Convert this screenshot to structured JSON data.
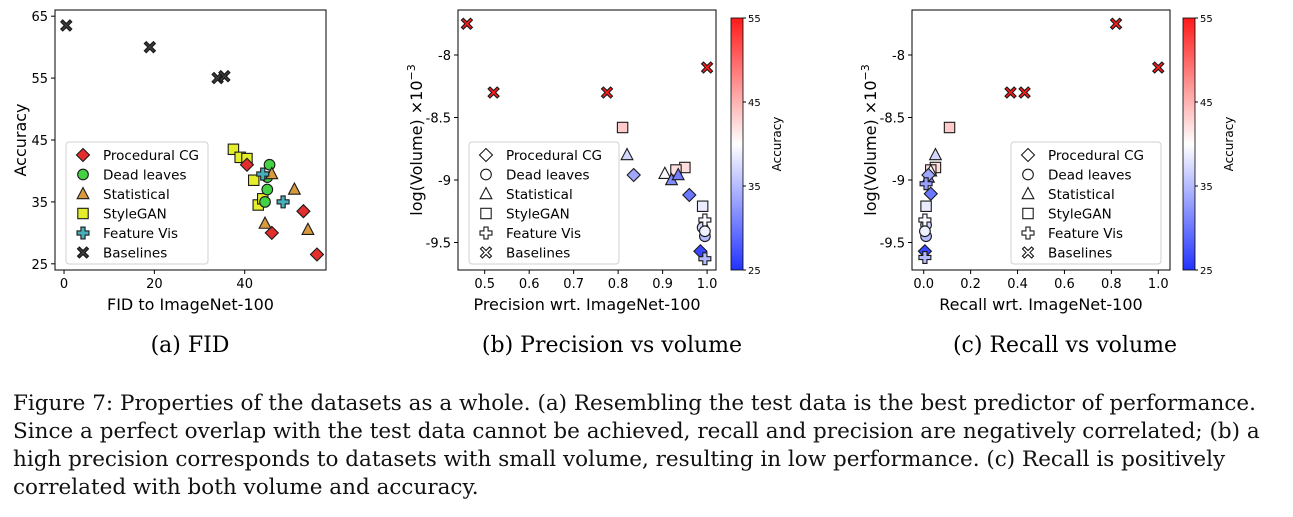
{
  "figure": {
    "caption_lines": [
      "Figure 7: Properties of the datasets as a whole. (a) Resembling the test data is the best predictor of performance.",
      "Since a perfect overlap with the test data cannot be achieved, recall and precision are negatively correlated; (b) a",
      "high precision corresponds to datasets with small volume, resulting in low performance. (c) Recall is positively",
      "correlated with both volume and accuracy."
    ]
  },
  "categories": [
    "Procedural CG",
    "Dead leaves",
    "Statistical",
    "StyleGAN",
    "Feature Vis",
    "Baselines"
  ],
  "category_colors": {
    "Procedural CG": "#e32e2e",
    "Dead leaves": "#44d144",
    "Statistical": "#d99a3e",
    "StyleGAN": "#e4ee2a",
    "Feature Vis": "#48b0bd",
    "Baselines": "#404040"
  },
  "category_markers": {
    "Procedural CG": "diamond",
    "Dead leaves": "circle",
    "Statistical": "triangle",
    "StyleGAN": "square",
    "Feature Vis": "plus",
    "Baselines": "x"
  },
  "colormap": {
    "name": "bwr",
    "low": "#2233ff",
    "mid": "#ffffff",
    "high": "#ff1a1a"
  },
  "chart_data": [
    {
      "type": "scatter",
      "subcaption": "(a) FID",
      "title": "",
      "xlabel": "FID to ImageNet-100",
      "ylabel": "Accuracy",
      "xlim": [
        -2,
        58
      ],
      "ylim": [
        24,
        66
      ],
      "xticks": [
        0,
        20,
        40
      ],
      "yticks": [
        25,
        35,
        45,
        55,
        65
      ],
      "grid": false,
      "legend": "lower-left",
      "color_by": "category",
      "points": [
        {
          "cat": "Baselines",
          "x": 0.5,
          "y": 63.5
        },
        {
          "cat": "Baselines",
          "x": 19,
          "y": 60
        },
        {
          "cat": "Baselines",
          "x": 34,
          "y": 55
        },
        {
          "cat": "Baselines",
          "x": 35.5,
          "y": 55.3
        },
        {
          "cat": "StyleGAN",
          "x": 37.5,
          "y": 43.5
        },
        {
          "cat": "StyleGAN",
          "x": 39,
          "y": 42.2
        },
        {
          "cat": "StyleGAN",
          "x": 40.5,
          "y": 42
        },
        {
          "cat": "StyleGAN",
          "x": 42,
          "y": 38.5
        },
        {
          "cat": "StyleGAN",
          "x": 43,
          "y": 34.5
        },
        {
          "cat": "StyleGAN",
          "x": 44,
          "y": 35.5
        },
        {
          "cat": "Procedural CG",
          "x": 40.5,
          "y": 41
        },
        {
          "cat": "Procedural CG",
          "x": 53,
          "y": 33.5
        },
        {
          "cat": "Procedural CG",
          "x": 46,
          "y": 30
        },
        {
          "cat": "Procedural CG",
          "x": 56,
          "y": 26.5
        },
        {
          "cat": "Dead leaves",
          "x": 45.5,
          "y": 41
        },
        {
          "cat": "Dead leaves",
          "x": 45,
          "y": 39
        },
        {
          "cat": "Dead leaves",
          "x": 45,
          "y": 37
        },
        {
          "cat": "Dead leaves",
          "x": 44.5,
          "y": 35
        },
        {
          "cat": "Statistical",
          "x": 46,
          "y": 39.5
        },
        {
          "cat": "Statistical",
          "x": 51,
          "y": 37
        },
        {
          "cat": "Statistical",
          "x": 54,
          "y": 30.5
        },
        {
          "cat": "Statistical",
          "x": 44.5,
          "y": 31.5
        },
        {
          "cat": "Feature Vis",
          "x": 44,
          "y": 39.5
        },
        {
          "cat": "Feature Vis",
          "x": 48.5,
          "y": 35
        }
      ]
    },
    {
      "type": "scatter",
      "subcaption": "(b) Precision vs volume",
      "title": "",
      "xlabel": "Precision wrt. ImageNet-100",
      "ylabel": "log(Volume) ×10",
      "ylabel_exponent": "−3",
      "xlim": [
        0.44,
        1.02
      ],
      "ylim": [
        -9.72,
        -7.64
      ],
      "xticks": [
        0.5,
        0.6,
        0.7,
        0.8,
        0.9,
        1.0
      ],
      "xtick_labels": [
        "0.5",
        "0.6",
        "0.7",
        "0.8",
        "0.9",
        "1.0"
      ],
      "yticks": [
        -8,
        -8.5,
        -9,
        -9.5
      ],
      "ytick_labels": [
        "-8",
        "-8.5",
        "-9",
        "-9.5"
      ],
      "grid": false,
      "legend": "lower-left",
      "color_by": "accuracy",
      "colorbar": {
        "label": "Accuracy",
        "min": 25,
        "max": 55,
        "ticks": [
          25,
          35,
          45,
          55
        ]
      },
      "points": [
        {
          "cat": "Baselines",
          "x": 0.46,
          "y": -7.75,
          "acc": 63.5
        },
        {
          "cat": "Baselines",
          "x": 0.52,
          "y": -8.3,
          "acc": 55.3
        },
        {
          "cat": "Baselines",
          "x": 0.775,
          "y": -8.3,
          "acc": 55
        },
        {
          "cat": "Baselines",
          "x": 1.0,
          "y": -8.1,
          "acc": 60
        },
        {
          "cat": "StyleGAN",
          "x": 0.81,
          "y": -8.58,
          "acc": 43.5
        },
        {
          "cat": "StyleGAN",
          "x": 0.95,
          "y": -8.9,
          "acc": 42.2
        },
        {
          "cat": "StyleGAN",
          "x": 0.93,
          "y": -8.92,
          "acc": 42
        },
        {
          "cat": "StyleGAN",
          "x": 0.99,
          "y": -9.21,
          "acc": 38.5
        },
        {
          "cat": "Statistical",
          "x": 0.82,
          "y": -8.8,
          "acc": 37
        },
        {
          "cat": "Statistical",
          "x": 0.905,
          "y": -8.95,
          "acc": 39.5
        },
        {
          "cat": "Statistical",
          "x": 0.92,
          "y": -9.0,
          "acc": 31.5
        },
        {
          "cat": "Statistical",
          "x": 0.935,
          "y": -8.96,
          "acc": 30.5
        },
        {
          "cat": "Procedural CG",
          "x": 0.835,
          "y": -8.96,
          "acc": 33.5
        },
        {
          "cat": "Procedural CG",
          "x": 0.96,
          "y": -9.12,
          "acc": 30
        },
        {
          "cat": "Procedural CG",
          "x": 0.985,
          "y": -9.57,
          "acc": 26.5
        },
        {
          "cat": "Dead leaves",
          "x": 0.99,
          "y": -9.38,
          "acc": 37
        },
        {
          "cat": "Dead leaves",
          "x": 0.995,
          "y": -9.45,
          "acc": 35
        },
        {
          "cat": "Dead leaves",
          "x": 0.995,
          "y": -9.41,
          "acc": 39
        },
        {
          "cat": "Feature Vis",
          "x": 0.995,
          "y": -9.32,
          "acc": 39.5
        },
        {
          "cat": "Feature Vis",
          "x": 0.995,
          "y": -9.63,
          "acc": 35
        }
      ]
    },
    {
      "type": "scatter",
      "subcaption": "(c) Recall vs volume",
      "title": "",
      "xlabel": "Recall wrt. ImageNet-100",
      "ylabel": "log(Volume) ×10",
      "ylabel_exponent": "−3",
      "xlim": [
        -0.05,
        1.05
      ],
      "ylim": [
        -9.72,
        -7.64
      ],
      "xticks": [
        0.0,
        0.2,
        0.4,
        0.6,
        0.8,
        1.0
      ],
      "xtick_labels": [
        "0.0",
        "0.2",
        "0.4",
        "0.6",
        "0.8",
        "1.0"
      ],
      "yticks": [
        -8,
        -8.5,
        -9,
        -9.5
      ],
      "ytick_labels": [
        "-8",
        "-8.5",
        "-9",
        "-9.5"
      ],
      "grid": false,
      "legend": "lower-right",
      "color_by": "accuracy",
      "colorbar": {
        "label": "Accuracy",
        "min": 25,
        "max": 55,
        "ticks": [
          25,
          35,
          45,
          55
        ]
      },
      "points": [
        {
          "cat": "Baselines",
          "x": 0.82,
          "y": -7.75,
          "acc": 63.5
        },
        {
          "cat": "Baselines",
          "x": 1.0,
          "y": -8.1,
          "acc": 60
        },
        {
          "cat": "Baselines",
          "x": 0.37,
          "y": -8.3,
          "acc": 55.3
        },
        {
          "cat": "Baselines",
          "x": 0.43,
          "y": -8.3,
          "acc": 55
        },
        {
          "cat": "StyleGAN",
          "x": 0.11,
          "y": -8.58,
          "acc": 43.5
        },
        {
          "cat": "StyleGAN",
          "x": 0.05,
          "y": -8.9,
          "acc": 42.2
        },
        {
          "cat": "StyleGAN",
          "x": 0.03,
          "y": -8.92,
          "acc": 42
        },
        {
          "cat": "StyleGAN",
          "x": 0.01,
          "y": -9.21,
          "acc": 38.5
        },
        {
          "cat": "Statistical",
          "x": 0.05,
          "y": -8.8,
          "acc": 37
        },
        {
          "cat": "Statistical",
          "x": 0.03,
          "y": -8.93,
          "acc": 39.5
        },
        {
          "cat": "Statistical",
          "x": 0.02,
          "y": -8.98,
          "acc": 31.5
        },
        {
          "cat": "Procedural CG",
          "x": 0.02,
          "y": -8.96,
          "acc": 33.5
        },
        {
          "cat": "Procedural CG",
          "x": 0.03,
          "y": -9.11,
          "acc": 30
        },
        {
          "cat": "Procedural CG",
          "x": 0.005,
          "y": -9.57,
          "acc": 26.5
        },
        {
          "cat": "Dead leaves",
          "x": 0.01,
          "y": -9.36,
          "acc": 37
        },
        {
          "cat": "Dead leaves",
          "x": 0.01,
          "y": -9.45,
          "acc": 35
        },
        {
          "cat": "Dead leaves",
          "x": 0.005,
          "y": -9.41,
          "acc": 39
        },
        {
          "cat": "Feature Vis",
          "x": 0.005,
          "y": -9.32,
          "acc": 39.5
        },
        {
          "cat": "Feature Vis",
          "x": 0.005,
          "y": -9.62,
          "acc": 35
        },
        {
          "cat": "Feature Vis",
          "x": 0.01,
          "y": -9.03,
          "acc": 33
        }
      ]
    }
  ]
}
